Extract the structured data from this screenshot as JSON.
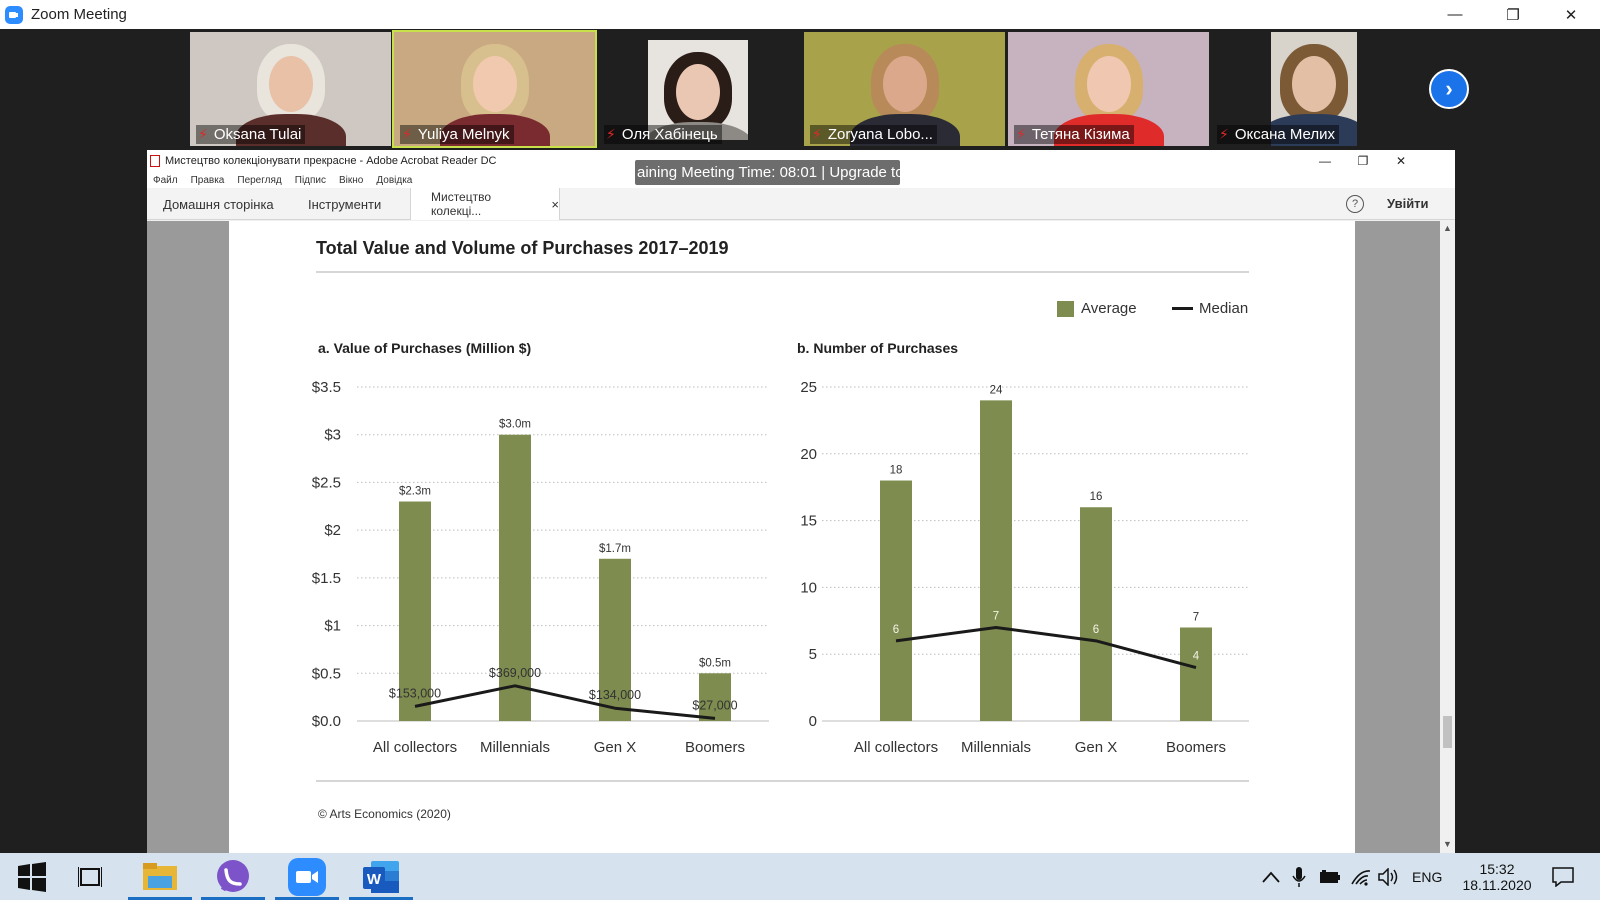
{
  "zoom": {
    "title": "Zoom Meeting",
    "controls": {
      "minimize": "—",
      "restore": "❐",
      "close": "✕"
    },
    "next_page_icon": "›"
  },
  "participants": [
    {
      "name": "Oksana Tulai",
      "bg": "#cfc8c2",
      "skin": "#e8c1a7",
      "hair": "#e9e4dc",
      "top": "#5a2e2a"
    },
    {
      "name": "Yuliya Melnyk",
      "bg": "#c9a982",
      "skin": "#f0c9ae",
      "hair": "#d8c08e",
      "top": "#7a2b30"
    },
    {
      "name": "Оля Хабінець",
      "bg": "#e7e4df",
      "skin": "#eac7b2",
      "hair": "#2a1c17",
      "top": "#8d8a86"
    },
    {
      "name": "Zoryana Lobo...",
      "bg": "#a8a24a",
      "skin": "#dba88b",
      "hair": "#b88a5a",
      "top": "#2b2b35"
    },
    {
      "name": "Тетяна Кізима",
      "bg": "#c7b2c0",
      "skin": "#f0c7b0",
      "hair": "#d7b070",
      "top": "#e02b2b"
    },
    {
      "name": "Оксана Мелих",
      "bg": "#d8d3cb",
      "skin": "#e3bfa5",
      "hair": "#7d5a36",
      "top": "#2c3b57"
    }
  ],
  "acrobat": {
    "title": "Мистецтво колекціонувати прекрасне - Adobe Acrobat Reader DC",
    "menu": [
      "Файл",
      "Правка",
      "Перегляд",
      "Підпис",
      "Вікно",
      "Довідка"
    ],
    "tabs": {
      "home": "Домашня сторінка",
      "tools": "Інструменти",
      "doc": "Мистецтво колекці...",
      "close": "×"
    },
    "help": "?",
    "signin": "Увійти",
    "controls": {
      "minimize": "—",
      "restore": "❐",
      "close": "✕"
    }
  },
  "timer_banner": "aining Meeting Time: 08:01 | Upgrade to",
  "figure": {
    "title": "Total Value and Volume of Purchases 2017–2019",
    "legend": {
      "average": "Average",
      "median": "Median"
    },
    "source": "© Arts Economics (2020)",
    "colors": {
      "bar": "#7e8c4f",
      "line": "#1a1a1a",
      "grid": "#bdbdbd"
    }
  },
  "chart_data": [
    {
      "type": "bar",
      "title": "a. Value of Purchases (Million $)",
      "categories": [
        "All collectors",
        "Millennials",
        "Gen X",
        "Boomers"
      ],
      "ylim": [
        0,
        3.5
      ],
      "yticks": [
        0,
        0.5,
        1,
        1.5,
        2,
        2.5,
        3,
        3.5
      ],
      "ytick_labels": [
        "$0.0",
        "$0.5",
        "$1",
        "$1.5",
        "$2",
        "$2.5",
        "$3",
        "$3.5"
      ],
      "grid": true,
      "legend": "top-right",
      "series": [
        {
          "name": "Average",
          "values": [
            2.3,
            3.0,
            1.7,
            0.5
          ],
          "labels": [
            "$2.3m",
            "$3.0m",
            "$1.7m",
            "$0.5m"
          ]
        },
        {
          "name": "Median",
          "values": [
            0.153,
            0.369,
            0.134,
            0.027
          ],
          "labels": [
            "$153,000",
            "$369,000",
            "$134,000",
            "$27,000"
          ]
        }
      ]
    },
    {
      "type": "bar",
      "title": "b. Number of Purchases",
      "categories": [
        "All collectors",
        "Millennials",
        "Gen X",
        "Boomers"
      ],
      "ylim": [
        0,
        25
      ],
      "yticks": [
        0,
        5,
        10,
        15,
        20,
        25
      ],
      "ytick_labels": [
        "0",
        "5",
        "10",
        "15",
        "20",
        "25"
      ],
      "grid": true,
      "legend": "top-right",
      "series": [
        {
          "name": "Average",
          "values": [
            18,
            24,
            16,
            7
          ],
          "labels": [
            "18",
            "24",
            "16",
            "7"
          ]
        },
        {
          "name": "Median",
          "values": [
            6,
            7,
            6,
            4
          ],
          "labels": [
            "6",
            "7",
            "6",
            "4"
          ]
        }
      ]
    }
  ],
  "taskbar": {
    "apps": [
      {
        "name": "windows-start",
        "icon": "windows-icon"
      },
      {
        "name": "task-view",
        "icon": "task-view-icon"
      },
      {
        "name": "file-explorer",
        "icon": "folder-icon"
      },
      {
        "name": "viber",
        "icon": "viber-icon"
      },
      {
        "name": "zoom",
        "icon": "zoom-icon"
      },
      {
        "name": "word",
        "icon": "word-icon",
        "letter": "W"
      }
    ],
    "tray": {
      "lang": "ENG",
      "time": "15:32",
      "date": "18.11.2020",
      "chevron": "^"
    }
  }
}
